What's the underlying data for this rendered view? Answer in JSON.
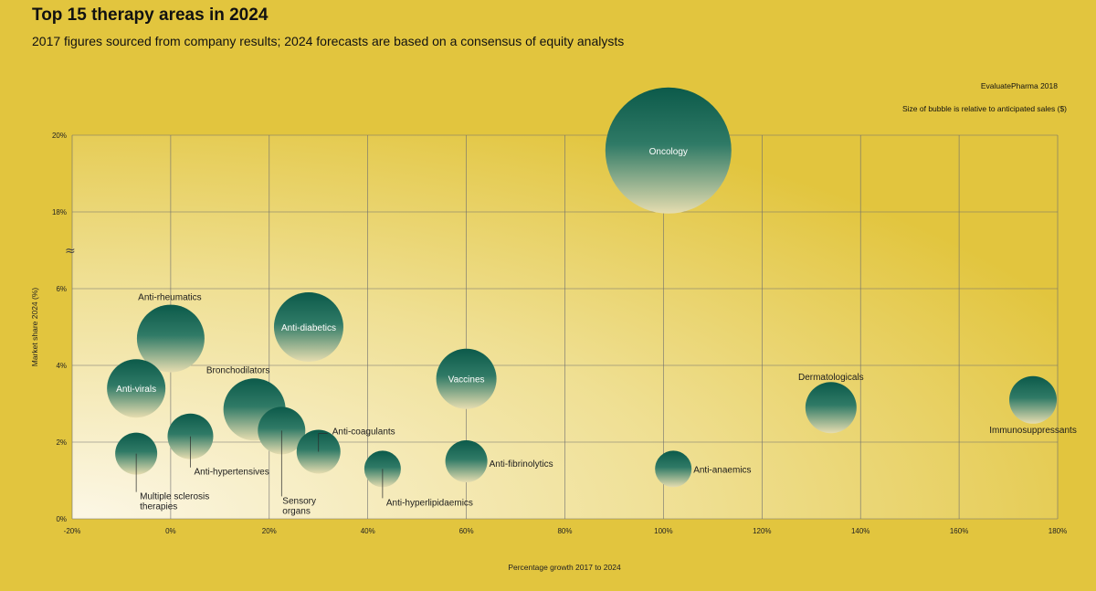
{
  "header": {
    "title": "Top 15 therapy areas in 2024",
    "subtitle": "2017 figures sourced from company results; 2024 forecasts are based on a consensus of equity analysts",
    "source": "EvaluatePharma 2018",
    "note": "Size of bubble is relative to anticipated sales ($)"
  },
  "colors": {
    "background": "#e2c53e",
    "bubble_dark": "#0c5a4a",
    "bubble_light": "#e6ddb0",
    "plot_light": "#fcf7e6"
  },
  "chart_data": {
    "type": "scatter",
    "title": "Top 15 therapy areas in 2024",
    "xlabel": "Percentage growth 2017 to 2024",
    "ylabel": "Market share 2024 (%)",
    "xlim": [
      -20,
      180
    ],
    "x_ticks": [
      -20,
      0,
      20,
      40,
      60,
      80,
      100,
      120,
      140,
      160,
      180
    ],
    "x_tick_labels": [
      "-20%",
      "0%",
      "20%",
      "40%",
      "60%",
      "80%",
      "100%",
      "120%",
      "140%",
      "160%",
      "180%"
    ],
    "y_ticks": [
      0,
      2,
      4,
      6,
      18,
      20
    ],
    "y_tick_labels": [
      "0%",
      "2%",
      "4%",
      "6%",
      "18%",
      "20%"
    ],
    "y_axis_break": true,
    "grid": true,
    "bubble_size_meaning": "anticipated sales ($)",
    "points": [
      {
        "label": "Oncology",
        "x": 101,
        "y": 19.6,
        "size": 69,
        "label_inside": true
      },
      {
        "label": "Anti-diabetics",
        "x": 28,
        "y": 5.0,
        "size": 38,
        "label_inside": true
      },
      {
        "label": "Anti-rheumatics",
        "x": 0,
        "y": 4.7,
        "size": 37,
        "label_inside": false
      },
      {
        "label": "Bronchodilators",
        "x": 17,
        "y": 2.85,
        "size": 34,
        "label_inside": false
      },
      {
        "label": "Vaccines",
        "x": 60,
        "y": 3.65,
        "size": 33,
        "label_inside": true
      },
      {
        "label": "Anti-virals",
        "x": -7,
        "y": 3.4,
        "size": 32,
        "label_inside": true
      },
      {
        "label": "Sensory organs",
        "x": 22.5,
        "y": 2.3,
        "size": 26,
        "label_inside": false
      },
      {
        "label": "Dermatologicals",
        "x": 134,
        "y": 2.9,
        "size": 28,
        "label_inside": false
      },
      {
        "label": "Immunosuppressants",
        "x": 175,
        "y": 3.1,
        "size": 26,
        "label_inside": false
      },
      {
        "label": "Anti-hypertensives",
        "x": 4,
        "y": 2.15,
        "size": 25,
        "label_inside": false
      },
      {
        "label": "Anti-coagulants",
        "x": 30,
        "y": 1.75,
        "size": 24,
        "label_inside": false
      },
      {
        "label": "Multiple sclerosis therapies",
        "x": -7,
        "y": 1.7,
        "size": 23,
        "label_inside": false
      },
      {
        "label": "Anti-fibrinolytics",
        "x": 60,
        "y": 1.5,
        "size": 23,
        "label_inside": false
      },
      {
        "label": "Anti-anaemics",
        "x": 102,
        "y": 1.3,
        "size": 20,
        "label_inside": false
      },
      {
        "label": "Anti-hyperlipidaemics",
        "x": 43,
        "y": 1.3,
        "size": 20,
        "label_inside": false
      }
    ]
  }
}
